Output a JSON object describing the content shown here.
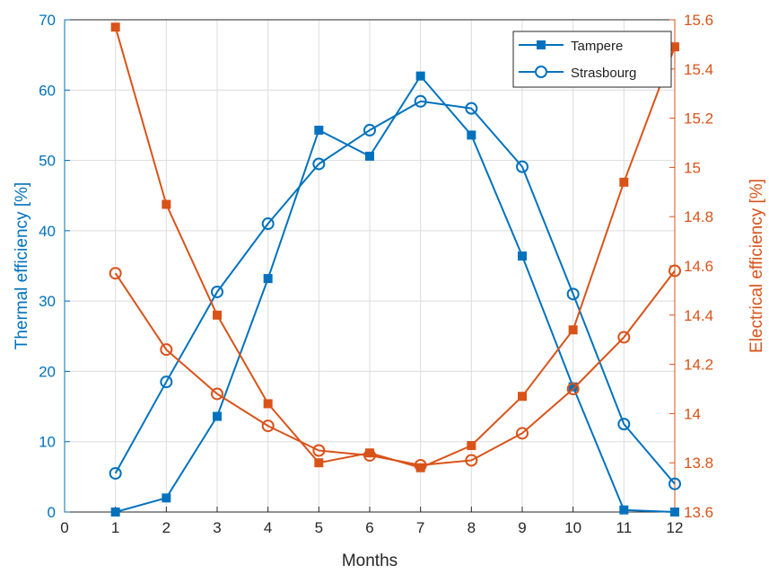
{
  "chart_data": {
    "type": "line",
    "xlabel": "Months",
    "ylabel_left": "Thermal efficiency [%]",
    "ylabel_right": "Electrical efficiency [%]",
    "xlim": [
      0,
      12
    ],
    "ylim_left": [
      0,
      70
    ],
    "ylim_right": [
      13.6,
      15.6
    ],
    "x_ticks": [
      0,
      1,
      2,
      3,
      4,
      5,
      6,
      7,
      8,
      9,
      10,
      11,
      12
    ],
    "y_left_ticks": [
      0,
      10,
      20,
      30,
      40,
      50,
      60,
      70
    ],
    "y_right_ticks": [
      "13.6",
      "13.8",
      "14",
      "14.2",
      "14.4",
      "14.6",
      "14.8",
      "15",
      "15.2",
      "15.4",
      "15.6"
    ],
    "grid": true,
    "legend_position": "top-right",
    "x": [
      1,
      2,
      3,
      4,
      5,
      6,
      7,
      8,
      9,
      10,
      11,
      12
    ],
    "series": [
      {
        "name": "Tampere",
        "axis": "left",
        "marker": "square",
        "color": "#0072BD",
        "values": [
          0.0,
          2.0,
          13.6,
          33.2,
          54.3,
          50.6,
          62.0,
          53.6,
          36.4,
          17.8,
          0.3,
          0.0
        ]
      },
      {
        "name": "Strasbourg",
        "axis": "left",
        "marker": "circle",
        "color": "#0072BD",
        "values": [
          5.5,
          18.5,
          31.3,
          41.0,
          49.5,
          54.3,
          58.4,
          57.4,
          49.1,
          31.0,
          12.5,
          4.0
        ]
      },
      {
        "name": "",
        "axis": "right",
        "marker": "square",
        "color": "#D95319",
        "values": [
          15.57,
          14.85,
          14.4,
          14.04,
          13.8,
          13.84,
          13.78,
          13.87,
          14.07,
          14.34,
          14.94,
          15.49
        ]
      },
      {
        "name": "",
        "axis": "right",
        "marker": "circle",
        "color": "#D95319",
        "values": [
          14.57,
          14.26,
          14.08,
          13.95,
          13.85,
          13.83,
          13.79,
          13.81,
          13.92,
          14.1,
          14.31,
          14.58
        ]
      }
    ],
    "colors": {
      "left_axis": "#0072BD",
      "right_axis": "#D95319",
      "grid": "#DCDCDC",
      "text": "#262626"
    }
  }
}
